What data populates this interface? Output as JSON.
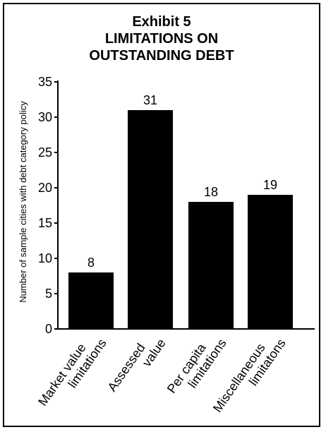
{
  "chart_data": {
    "type": "bar",
    "title_lines": [
      "Exhibit 5",
      "LIMITATIONS ON",
      "OUTSTANDING DEBT"
    ],
    "ylabel": "Number of sample cities with debt category policy",
    "xlabel": "",
    "categories": [
      [
        "Market value",
        "limitations"
      ],
      [
        "Assessed",
        "value"
      ],
      [
        "Per capita",
        "limitations"
      ],
      [
        "Miscellaneous",
        "limitatons"
      ]
    ],
    "values": [
      8,
      31,
      18,
      19
    ],
    "data_labels": [
      "8",
      "31",
      "18",
      "19"
    ],
    "ylim": [
      0,
      35
    ],
    "yticks": [
      0,
      5,
      10,
      15,
      20,
      25,
      30,
      35
    ],
    "bar_color": "#000000",
    "grid": false,
    "legend": "none"
  }
}
